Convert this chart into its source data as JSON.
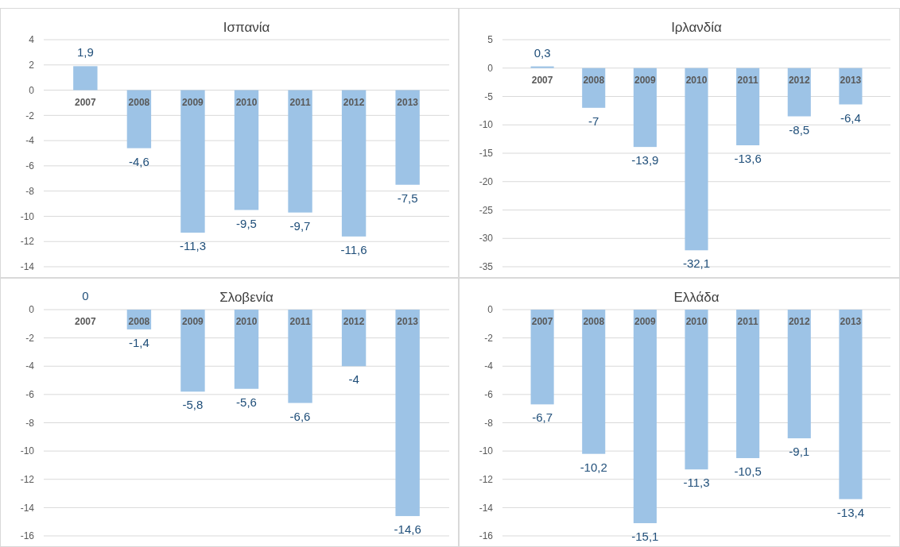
{
  "chart_data": [
    {
      "type": "bar",
      "title": "Ισπανία",
      "categories": [
        "2007",
        "2008",
        "2009",
        "2010",
        "2011",
        "2012",
        "2013"
      ],
      "values": [
        1.9,
        -4.6,
        -11.3,
        -9.5,
        -9.7,
        -11.6,
        -7.5
      ],
      "value_labels": [
        "1,9",
        "-4,6",
        "-11,3",
        "-9,5",
        "-9,7",
        "-11,6",
        "-7,5"
      ],
      "color": "#9dc3e6",
      "ylim": [
        -14,
        4
      ],
      "yticks": [
        4,
        2,
        0,
        -2,
        -4,
        -6,
        -8,
        -10,
        -12,
        -14
      ],
      "grid": "y"
    },
    {
      "type": "bar",
      "title": "Ιρλανδία",
      "categories": [
        "2007",
        "2008",
        "2009",
        "2010",
        "2011",
        "2012",
        "2013"
      ],
      "values": [
        0.3,
        -7,
        -13.9,
        -32.1,
        -13.6,
        -8.5,
        -6.4
      ],
      "value_labels": [
        "0,3",
        "-7",
        "-13,9",
        "-32,1",
        "-13,6",
        "-8,5",
        "-6,4"
      ],
      "color": "#9dc3e6",
      "ylim": [
        -35,
        5
      ],
      "yticks": [
        5,
        0,
        -5,
        -10,
        -15,
        -20,
        -25,
        -30,
        -35
      ],
      "grid": "y"
    },
    {
      "type": "bar",
      "title": "Σλοβενία",
      "categories": [
        "2007",
        "2008",
        "2009",
        "2010",
        "2011",
        "2012",
        "2013"
      ],
      "values": [
        0,
        -1.4,
        -5.8,
        -5.6,
        -6.6,
        -4,
        -14.6
      ],
      "value_labels": [
        "0",
        "-1,4",
        "-5,8",
        "-5,6",
        "-6,6",
        "-4",
        "-14,6"
      ],
      "color": "#9dc3e6",
      "ylim": [
        -16,
        0
      ],
      "yticks": [
        0,
        -2,
        -4,
        -6,
        -8,
        -10,
        -12,
        -14,
        -16
      ],
      "grid": "y"
    },
    {
      "type": "bar",
      "title": "Ελλάδα",
      "categories": [
        "2007",
        "2008",
        "2009",
        "2010",
        "2011",
        "2012",
        "2013"
      ],
      "values": [
        -6.7,
        -10.2,
        -15.1,
        -11.3,
        -10.5,
        -9.1,
        -13.4
      ],
      "value_labels": [
        "-6,7",
        "-10,2",
        "-15,1",
        "-11,3",
        "-10,5",
        "-9,1",
        "-13,4"
      ],
      "color": "#9dc3e6",
      "ylim": [
        -16,
        0
      ],
      "yticks": [
        0,
        -2,
        -4,
        -6,
        -8,
        -10,
        -12,
        -14,
        -16
      ],
      "grid": "y"
    }
  ]
}
